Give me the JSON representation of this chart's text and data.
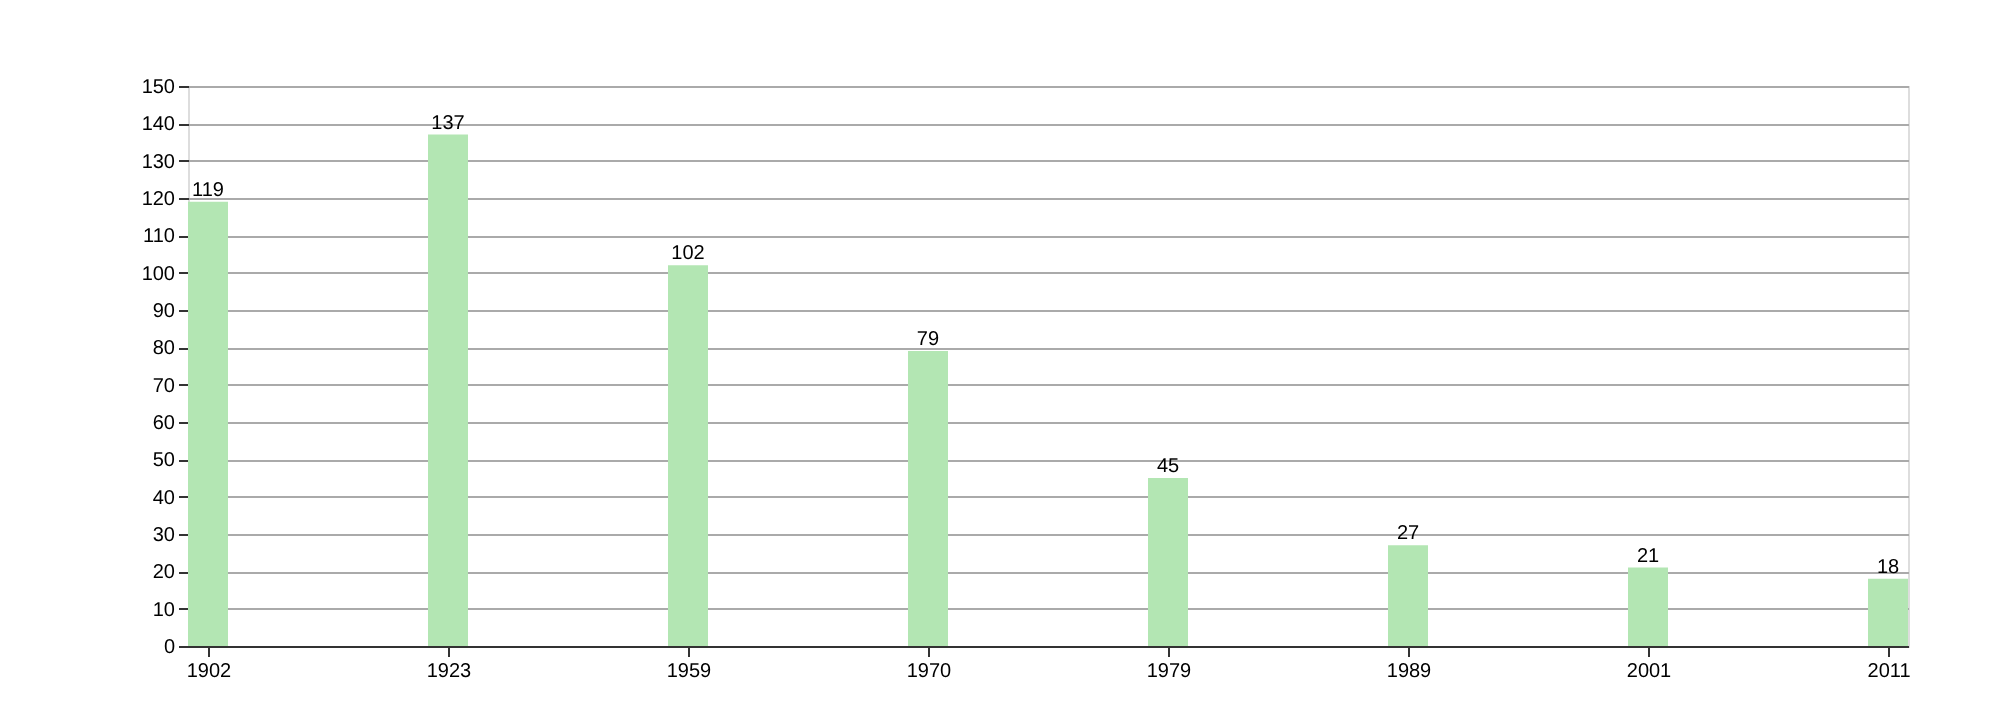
{
  "chart_data": {
    "type": "bar",
    "categories": [
      "1902",
      "1923",
      "1959",
      "1970",
      "1979",
      "1989",
      "2001",
      "2011"
    ],
    "values": [
      119,
      137,
      102,
      79,
      45,
      27,
      21,
      18
    ],
    "color": "#b3e6b3",
    "ylim": [
      0,
      150
    ],
    "yticks": [
      0,
      10,
      20,
      30,
      40,
      50,
      60,
      70,
      80,
      90,
      100,
      110,
      120,
      130,
      140,
      150
    ],
    "grid": "y",
    "data_labels": true
  }
}
